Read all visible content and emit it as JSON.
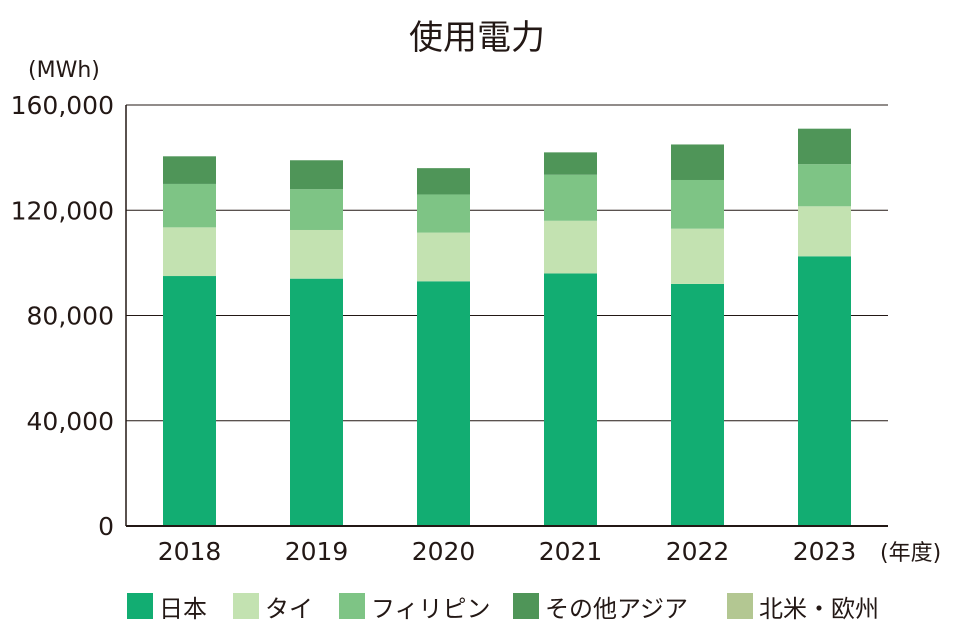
{
  "chart_data": {
    "type": "bar",
    "stacked": true,
    "title": "使用電力",
    "ylabel": "(MWh)",
    "xlabel": "(年度)",
    "categories": [
      "2018",
      "2019",
      "2020",
      "2021",
      "2022",
      "2023"
    ],
    "ylim": [
      0,
      160000
    ],
    "yticks": [
      0,
      40000,
      80000,
      120000,
      160000
    ],
    "ytick_labels": [
      "0",
      "40,000",
      "80,000",
      "120,000",
      "160,000"
    ],
    "grid": true,
    "legend_position": "bottom",
    "series": [
      {
        "name": "日本",
        "color": "#12ad72",
        "values": [
          95000,
          94000,
          93000,
          96000,
          92000,
          102500
        ]
      },
      {
        "name": "タイ",
        "color": "#c3e2b1",
        "values": [
          18500,
          18500,
          18500,
          20000,
          21000,
          19000
        ]
      },
      {
        "name": "フィリピン",
        "color": "#7ec485",
        "values": [
          16500,
          15500,
          14500,
          17500,
          18500,
          16000
        ]
      },
      {
        "name": "その他アジア",
        "color": "#4f9558",
        "values": [
          10500,
          11000,
          10000,
          8500,
          13500,
          13500
        ]
      },
      {
        "name": "北米・欧州",
        "color": "#b3c792",
        "values": [
          0,
          0,
          0,
          0,
          0,
          0
        ]
      }
    ]
  }
}
